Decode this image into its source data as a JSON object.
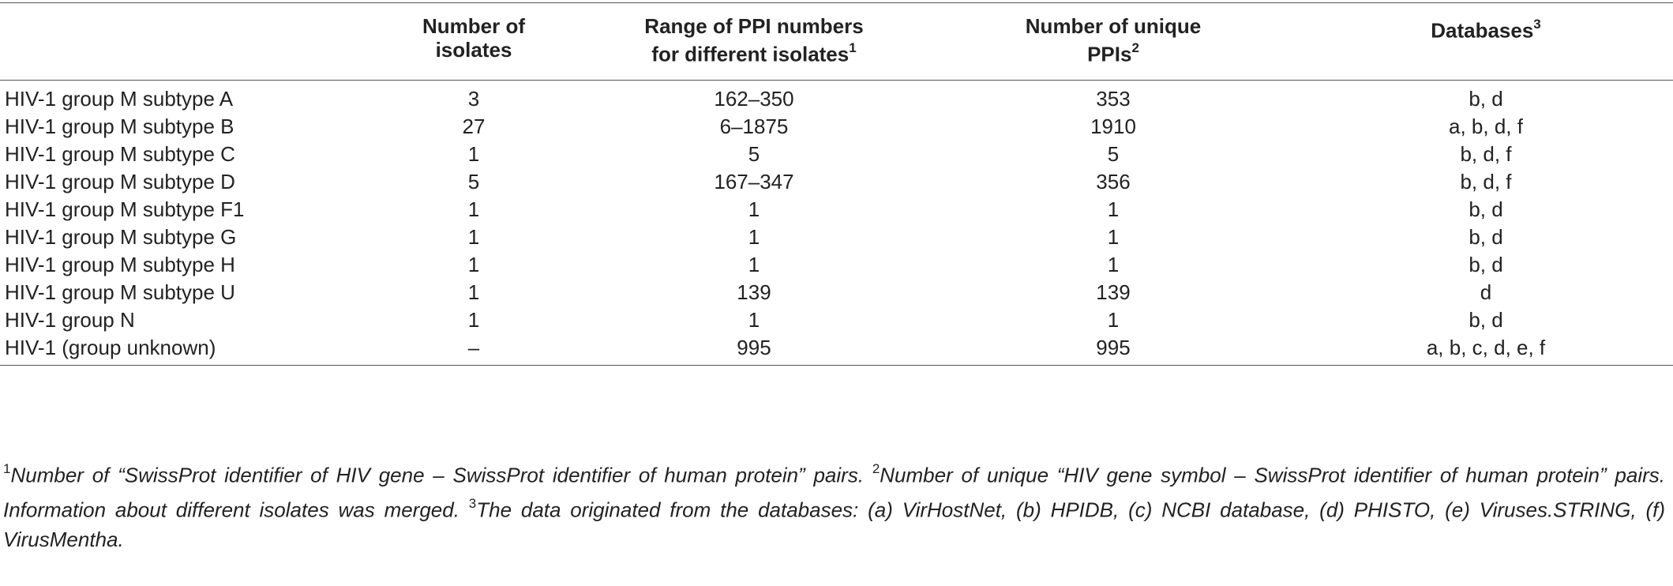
{
  "table": {
    "headers": [
      {
        "lines": [
          ""
        ],
        "sup": ""
      },
      {
        "lines": [
          "Number of",
          "isolates"
        ],
        "sup": ""
      },
      {
        "lines": [
          "Range of PPI numbers",
          "for different isolates"
        ],
        "sup": "1"
      },
      {
        "lines": [
          "Number of unique",
          "PPIs"
        ],
        "sup": "2"
      },
      {
        "lines": [
          "Databases"
        ],
        "sup": "3"
      }
    ],
    "rows": [
      [
        "HIV-1 group M subtype A",
        "3",
        "162–350",
        "353",
        "b, d"
      ],
      [
        "HIV-1 group M subtype B",
        "27",
        "6–1875",
        "1910",
        "a, b, d, f"
      ],
      [
        "HIV-1 group M subtype C",
        "1",
        "5",
        "5",
        "b, d, f"
      ],
      [
        "HIV-1 group M subtype D",
        "5",
        "167–347",
        "356",
        "b, d, f"
      ],
      [
        "HIV-1 group M subtype F1",
        "1",
        "1",
        "1",
        "b, d"
      ],
      [
        "HIV-1 group M subtype G",
        "1",
        "1",
        "1",
        "b, d"
      ],
      [
        "HIV-1 group M subtype H",
        "1",
        "1",
        "1",
        "b, d"
      ],
      [
        "HIV-1 group M subtype U",
        "1",
        "139",
        "139",
        "d"
      ],
      [
        "HIV-1 group N",
        "1",
        "1",
        "1",
        "b, d"
      ],
      [
        "HIV-1 (group unknown)",
        "–",
        "995",
        "995",
        "a, b, c, d, e, f"
      ]
    ]
  },
  "footnotes": [
    {
      "sup": "1",
      "text": "Number of “SwissProt identifier of HIV gene – SwissProt identifier of human protein” pairs. "
    },
    {
      "sup": "2",
      "text": "Number of unique “HIV gene symbol – SwissProt identifier of human protein” pairs. Information about different isolates was merged. "
    },
    {
      "sup": "3",
      "text": "The data originated from the databases: (a) VirHostNet, (b) HPIDB, (c) NCBI database, (d) PHISTO, (e) Viruses.STRING, (f) VirusMentha."
    }
  ]
}
